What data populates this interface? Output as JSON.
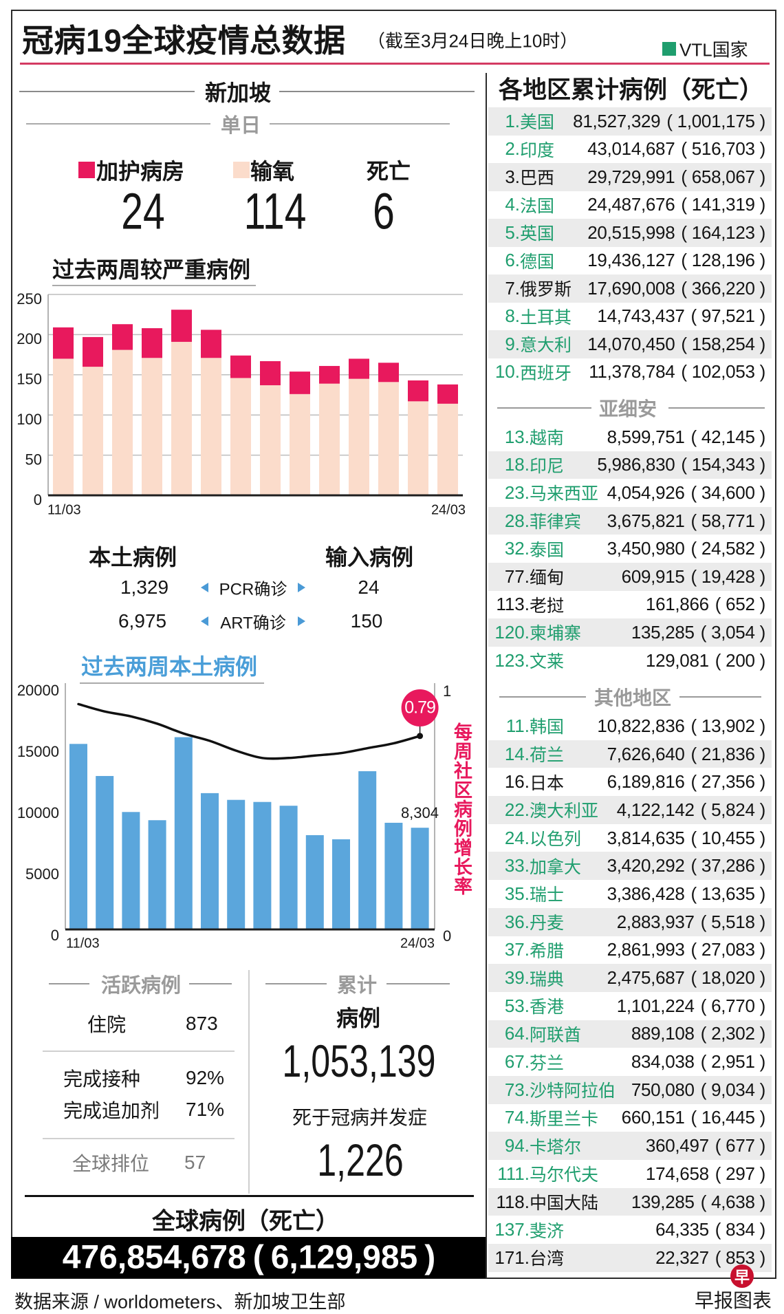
{
  "header": {
    "title": "冠病19全球疫情总数据",
    "subtitle": "（截至3月24日晚上10时）",
    "legend": {
      "label": "VTL国家",
      "color": "#1f9e6e"
    }
  },
  "colors": {
    "vtl_green": "#1f9e6e",
    "accent_red": "#d43a62",
    "icu": "#e8195d",
    "oxygen": "#fbdccb",
    "local_blue": "#5ba6dc",
    "title_blue": "#4a9ed8",
    "growth_magenta": "#e8195d"
  },
  "singapore": {
    "heading": "新加坡",
    "daily": {
      "heading": "单日",
      "items": [
        {
          "label": "加护病房",
          "value": "24",
          "color": "#e8195d"
        },
        {
          "label": "输氧",
          "value": "114",
          "color": "#fbdccb"
        },
        {
          "label": "死亡",
          "value": "6"
        }
      ]
    },
    "cases": {
      "local_label": "本土病例",
      "imported_label": "输入病例",
      "rows": [
        {
          "local": "1,329",
          "method": "PCR确诊",
          "imported": "24"
        },
        {
          "local": "6,975",
          "method": "ART确诊",
          "imported": "150"
        }
      ]
    },
    "active": {
      "heading": "活跃病例",
      "hospitalised_label": "住院",
      "hospitalised": "873",
      "vaccinated_label": "完成接种",
      "vaccinated": "92%",
      "booster_label": "完成追加剂",
      "booster": "71%",
      "rank_label": "全球排位",
      "rank": "57"
    },
    "cumulative": {
      "heading": "累计",
      "cases_label": "病例",
      "cases": "1,053,139",
      "deaths_label": "死于冠病并发症",
      "deaths": "1,226"
    }
  },
  "global": {
    "heading": "全球病例（死亡）",
    "cases": "476,854,678",
    "deaths": "6,129,985"
  },
  "regions": {
    "heading": "各地区累计病例（死亡）",
    "top10": [
      {
        "rank": "1.",
        "name": "美国",
        "cases": "81,527,329",
        "deaths": "1,001,175",
        "vtl": true
      },
      {
        "rank": "2.",
        "name": "印度",
        "cases": "43,014,687",
        "deaths": "516,703",
        "vtl": true
      },
      {
        "rank": "3.",
        "name": "巴西",
        "cases": "29,729,991",
        "deaths": "658,067",
        "vtl": false
      },
      {
        "rank": "4.",
        "name": "法国",
        "cases": "24,487,676",
        "deaths": "141,319",
        "vtl": true
      },
      {
        "rank": "5.",
        "name": "英国",
        "cases": "20,515,998",
        "deaths": "164,123",
        "vtl": true
      },
      {
        "rank": "6.",
        "name": "德国",
        "cases": "19,436,127",
        "deaths": "128,196",
        "vtl": true
      },
      {
        "rank": "7.",
        "name": "俄罗斯",
        "cases": "17,690,008",
        "deaths": "366,220",
        "vtl": false
      },
      {
        "rank": "8.",
        "name": "土耳其",
        "cases": "14,743,437",
        "deaths": "97,521",
        "vtl": true
      },
      {
        "rank": "9.",
        "name": "意大利",
        "cases": "14,070,450",
        "deaths": "158,254",
        "vtl": true
      },
      {
        "rank": "10.",
        "name": "西班牙",
        "cases": "11,378,784",
        "deaths": "102,053",
        "vtl": true
      }
    ],
    "asean": {
      "heading": "亚细安",
      "rows": [
        {
          "rank": "13.",
          "name": "越南",
          "cases": "8,599,751",
          "deaths": "42,145",
          "vtl": true
        },
        {
          "rank": "18.",
          "name": "印尼",
          "cases": "5,986,830",
          "deaths": "154,343",
          "vtl": true
        },
        {
          "rank": "23.",
          "name": "马来西亚",
          "cases": "4,054,926",
          "deaths": "34,600",
          "vtl": true
        },
        {
          "rank": "28.",
          "name": "菲律宾",
          "cases": "3,675,821",
          "deaths": "58,771",
          "vtl": true
        },
        {
          "rank": "32.",
          "name": "泰国",
          "cases": "3,450,980",
          "deaths": "24,582",
          "vtl": true
        },
        {
          "rank": "77.",
          "name": "缅甸",
          "cases": "609,915",
          "deaths": "19,428",
          "vtl": false
        },
        {
          "rank": "113.",
          "name": "老挝",
          "cases": "161,866",
          "deaths": "652",
          "vtl": false
        },
        {
          "rank": "120.",
          "name": "柬埔寨",
          "cases": "135,285",
          "deaths": "3,054",
          "vtl": true
        },
        {
          "rank": "123.",
          "name": "文莱",
          "cases": "129,081",
          "deaths": "200",
          "vtl": true
        }
      ]
    },
    "others": {
      "heading": "其他地区",
      "rows": [
        {
          "rank": "11.",
          "name": "韩国",
          "cases": "10,822,836",
          "deaths": "13,902",
          "vtl": true
        },
        {
          "rank": "14.",
          "name": "荷兰",
          "cases": "7,626,640",
          "deaths": "21,836",
          "vtl": true
        },
        {
          "rank": "16.",
          "name": "日本",
          "cases": "6,189,816",
          "deaths": "27,356",
          "vtl": false
        },
        {
          "rank": "22.",
          "name": "澳大利亚",
          "cases": "4,122,142",
          "deaths": "5,824",
          "vtl": true
        },
        {
          "rank": "24.",
          "name": "以色列",
          "cases": "3,814,635",
          "deaths": "10,455",
          "vtl": true
        },
        {
          "rank": "33.",
          "name": "加拿大",
          "cases": "3,420,292",
          "deaths": "37,286",
          "vtl": true
        },
        {
          "rank": "35.",
          "name": "瑞士",
          "cases": "3,386,428",
          "deaths": "13,635",
          "vtl": true
        },
        {
          "rank": "36.",
          "name": "丹麦",
          "cases": "2,883,937",
          "deaths": "5,518",
          "vtl": true
        },
        {
          "rank": "37.",
          "name": "希腊",
          "cases": "2,861,993",
          "deaths": "27,083",
          "vtl": true
        },
        {
          "rank": "39.",
          "name": "瑞典",
          "cases": "2,475,687",
          "deaths": "18,020",
          "vtl": true
        },
        {
          "rank": "53.",
          "name": "香港",
          "cases": "1,101,224",
          "deaths": "6,770",
          "vtl": true
        },
        {
          "rank": "64.",
          "name": "阿联酋",
          "cases": "889,108",
          "deaths": "2,302",
          "vtl": true
        },
        {
          "rank": "67.",
          "name": "芬兰",
          "cases": "834,038",
          "deaths": "2,951",
          "vtl": true
        },
        {
          "rank": "73.",
          "name": "沙特阿拉伯",
          "cases": "750,080",
          "deaths": "9,034",
          "vtl": true
        },
        {
          "rank": "74.",
          "name": "斯里兰卡",
          "cases": "660,151",
          "deaths": "16,445",
          "vtl": true
        },
        {
          "rank": "94.",
          "name": "卡塔尔",
          "cases": "360,497",
          "deaths": "677",
          "vtl": true
        },
        {
          "rank": "111.",
          "name": "马尔代夫",
          "cases": "174,658",
          "deaths": "297",
          "vtl": true
        },
        {
          "rank": "118.",
          "name": "中国大陆",
          "cases": "139,285",
          "deaths": "4,638",
          "vtl": false
        },
        {
          "rank": "137.",
          "name": "斐济",
          "cases": "64,335",
          "deaths": "834",
          "vtl": true
        },
        {
          "rank": "171.",
          "name": "台湾",
          "cases": "22,327",
          "deaths": "853",
          "vtl": false
        }
      ]
    }
  },
  "footer": {
    "source": "数据来源 / worldometers、新加坡卫生部",
    "credit": "早报图表",
    "logo_char": "早"
  },
  "chart_data": [
    {
      "type": "bar",
      "stacked": true,
      "title": "过去两周较严重病例",
      "categories": [
        "11/03",
        "12/03",
        "13/03",
        "14/03",
        "15/03",
        "16/03",
        "17/03",
        "18/03",
        "19/03",
        "20/03",
        "21/03",
        "22/03",
        "23/03",
        "24/03"
      ],
      "xtick_labels": [
        "11/03",
        "24/03"
      ],
      "series": [
        {
          "name": "输氧",
          "values": [
            170,
            160,
            181,
            171,
            191,
            171,
            146,
            137,
            126,
            139,
            145,
            141,
            117,
            114
          ],
          "color": "#fbdccb"
        },
        {
          "name": "加护病房",
          "values": [
            39,
            37,
            32,
            37,
            40,
            35,
            28,
            30,
            28,
            22,
            25,
            24,
            26,
            24
          ],
          "color": "#e8195d"
        }
      ],
      "xlabel": "",
      "ylabel": "",
      "ylim": [
        0,
        250
      ],
      "yticks": [
        0,
        50,
        100,
        150,
        200,
        250
      ],
      "ytick_labels": [
        "0",
        "50",
        "100",
        "150",
        "200",
        "250"
      ],
      "grid": true,
      "legend": "top"
    },
    {
      "type": "bar",
      "title": "过去两周本土病例",
      "categories": [
        "11/03",
        "12/03",
        "13/03",
        "14/03",
        "15/03",
        "16/03",
        "17/03",
        "18/03",
        "19/03",
        "20/03",
        "21/03",
        "22/03",
        "23/03",
        "24/03"
      ],
      "xtick_labels": [
        "11/03",
        "24/03"
      ],
      "series": [
        {
          "name": "本土病例",
          "type": "bar",
          "values": [
            15150,
            12530,
            9590,
            8920,
            15700,
            11130,
            10580,
            10410,
            10100,
            7700,
            7360,
            12920,
            8710,
            8304
          ],
          "color": "#5ba6dc"
        },
        {
          "name": "每周社区病例增长率",
          "type": "line",
          "axis": "right",
          "values": [
            0.92,
            0.89,
            0.87,
            0.84,
            0.8,
            0.77,
            0.73,
            0.7,
            0.7,
            0.71,
            0.72,
            0.74,
            0.76,
            0.79
          ],
          "color": "#111111"
        }
      ],
      "xlabel": "",
      "ylabel": "",
      "ylim": [
        0,
        20000
      ],
      "yticks": [
        0,
        5000,
        10000,
        15000,
        20000
      ],
      "ytick_labels": [
        "0",
        "5000",
        "10000",
        "15000",
        "20000"
      ],
      "y2label": "每周社区病例增长率",
      "y2lim": [
        0,
        1
      ],
      "y2ticks": [
        0,
        1
      ],
      "y2tick_labels": [
        "0",
        "1"
      ],
      "annotations": [
        {
          "target": "last-bar",
          "text": "8,304"
        },
        {
          "target": "last-line-point",
          "text": "0.79",
          "color": "#e8195d"
        }
      ],
      "grid": false
    }
  ]
}
